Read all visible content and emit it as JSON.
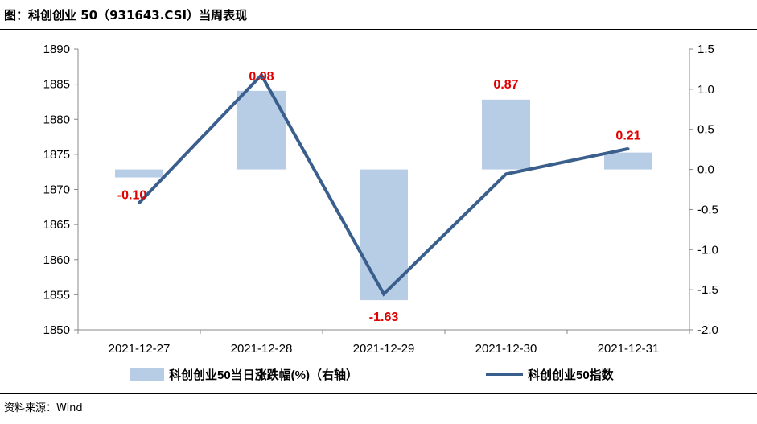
{
  "header": {
    "title": "图：科创创业 50（931643.CSI）当周表现"
  },
  "footer": {
    "source": "资料来源：Wind"
  },
  "colors": {
    "bar": "#b7cde6",
    "line": "#3b5f8c",
    "label": "#e00000"
  },
  "chart_data": {
    "type": "bar+line",
    "categories": [
      "2021-12-27",
      "2021-12-28",
      "2021-12-29",
      "2021-12-30",
      "2021-12-31"
    ],
    "series": [
      {
        "name": "科创创业50当日涨跌幅(%)（右轴）",
        "kind": "bar",
        "axis": "right",
        "values": [
          -0.1,
          0.98,
          -1.63,
          0.87,
          0.21
        ]
      },
      {
        "name": "科创创业50指数",
        "kind": "line",
        "axis": "left",
        "values": [
          1868.1,
          1886.3,
          1855.1,
          1872.2,
          1875.8
        ]
      }
    ],
    "data_labels": [
      "-0.10",
      "0.98",
      "-1.63",
      "0.87",
      "0.21"
    ],
    "left_axis": {
      "ylim": [
        1850,
        1890
      ],
      "ticks": [
        "1850",
        "1855",
        "1860",
        "1865",
        "1870",
        "1875",
        "1880",
        "1885",
        "1890"
      ]
    },
    "right_axis": {
      "ylim": [
        -2.0,
        1.5
      ],
      "ticks": [
        "-2.0",
        "-1.5",
        "-1.0",
        "-0.5",
        "0.0",
        "0.5",
        "1.0",
        "1.5"
      ]
    },
    "legend": {
      "position": "bottom"
    },
    "grid": false
  }
}
